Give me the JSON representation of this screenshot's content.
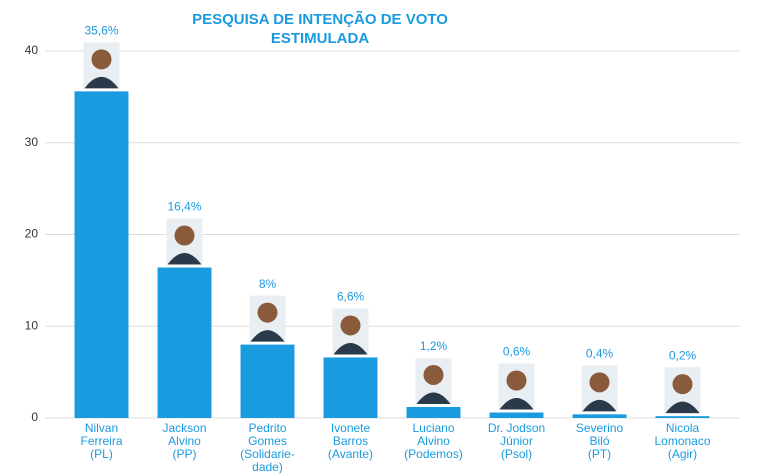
{
  "chart_data": {
    "type": "bar",
    "title": "PESQUISA DE INTENÇÃO DE VOTO\nESTIMULADA",
    "categories": [
      "Nilvan\nFerreira\n(PL)",
      "Jackson\nAlvino\n(PP)",
      "Pedrito\nGomes\n(Solidarie-\ndade)",
      "Ivonete\nBarros\n(Avante)",
      "Luciano\nAlvino\n(Podemos)",
      "Dr. Jodson\nJúnior\n(Psol)",
      "Severino\nBiló\n(PT)",
      "Nicola\nLomonaco\n(Agir)"
    ],
    "values": [
      35.6,
      16.4,
      8,
      6.6,
      1.2,
      0.6,
      0.4,
      0.2
    ],
    "value_labels": [
      "35,6%",
      "16,4%",
      "8%",
      "6,6%",
      "1,2%",
      "0,6%",
      "0,4%",
      "0,2%"
    ],
    "color": "#1a9be0",
    "ylim": [
      0,
      42
    ],
    "yticks": [
      0,
      10,
      20,
      30,
      40
    ],
    "grid": true
  }
}
